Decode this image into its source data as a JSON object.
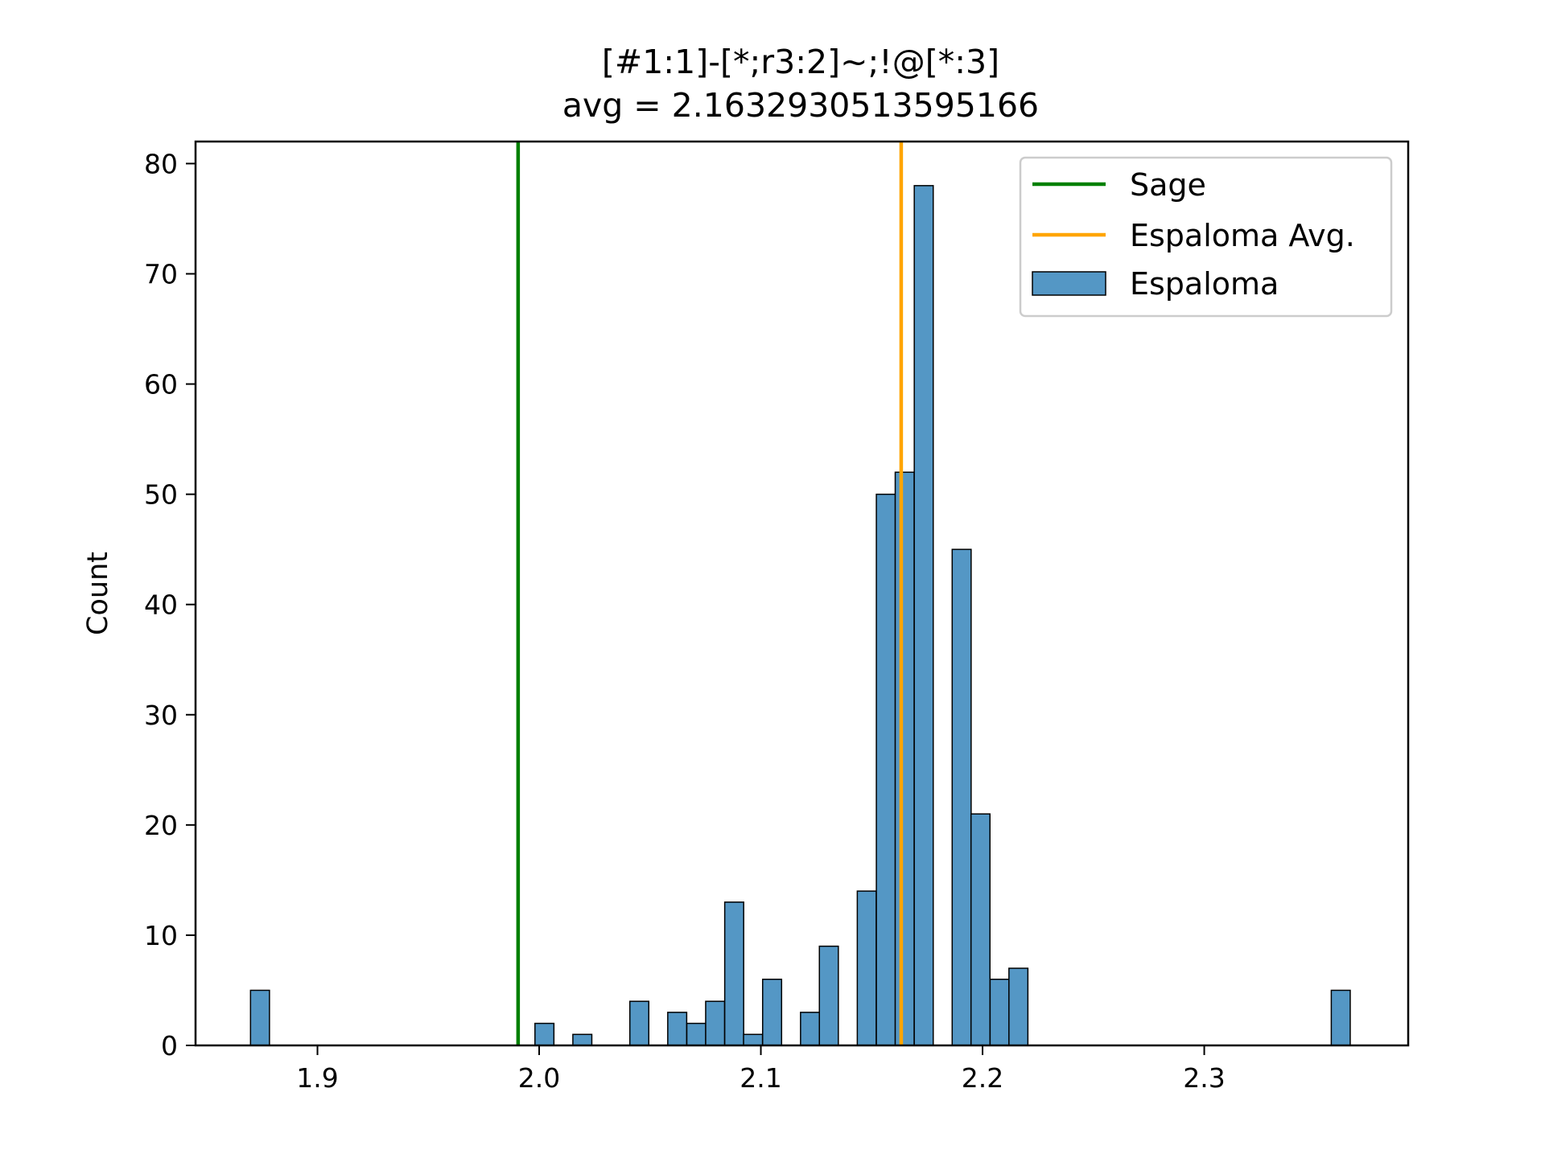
{
  "chart_data": {
    "type": "bar",
    "title": "[#1:1]-[*;r3:2]~;!@[*:3]",
    "subtitle": "avg = 2.1632930513595166",
    "xlabel": "",
    "ylabel": "Count",
    "xlim": [
      1.845,
      2.392
    ],
    "ylim": [
      0,
      82
    ],
    "x_ticks": [
      "1.9",
      "2.0",
      "2.1",
      "2.2",
      "2.3"
    ],
    "y_ticks": [
      "0",
      "10",
      "20",
      "30",
      "40",
      "50",
      "60",
      "70",
      "80"
    ],
    "bin_width": 0.00855,
    "bins": [
      {
        "x0": 1.8698,
        "count": 5
      },
      {
        "x0": 1.9981,
        "count": 2
      },
      {
        "x0": 2.0152,
        "count": 1
      },
      {
        "x0": 2.0409,
        "count": 4
      },
      {
        "x0": 2.058,
        "count": 3
      },
      {
        "x0": 2.0666,
        "count": 2
      },
      {
        "x0": 2.0751,
        "count": 4
      },
      {
        "x0": 2.0837,
        "count": 13
      },
      {
        "x0": 2.0922,
        "count": 1
      },
      {
        "x0": 2.1008,
        "count": 6
      },
      {
        "x0": 2.1179,
        "count": 3
      },
      {
        "x0": 2.1264,
        "count": 9
      },
      {
        "x0": 2.1435,
        "count": 14
      },
      {
        "x0": 2.1521,
        "count": 50
      },
      {
        "x0": 2.1606,
        "count": 52
      },
      {
        "x0": 2.1692,
        "count": 78
      },
      {
        "x0": 2.1863,
        "count": 45
      },
      {
        "x0": 2.1948,
        "count": 21
      },
      {
        "x0": 2.2034,
        "count": 6
      },
      {
        "x0": 2.2119,
        "count": 7
      },
      {
        "x0": 2.3573,
        "count": 5
      }
    ],
    "vlines": [
      {
        "name": "Sage",
        "x": 1.9905,
        "color": "#008000"
      },
      {
        "name": "Espaloma Avg.",
        "x": 2.1633,
        "color": "#ffa500"
      }
    ],
    "legend": {
      "placement": "top-right",
      "entries": [
        {
          "label": "Sage",
          "kind": "line",
          "color": "#008000"
        },
        {
          "label": "Espaloma Avg.",
          "kind": "line",
          "color": "#ffa500"
        },
        {
          "label": "Espaloma",
          "kind": "patch",
          "color": "#5497c5"
        }
      ]
    },
    "bar_color": "#5497c5",
    "bar_edge_color": "#000000",
    "grid": false
  }
}
